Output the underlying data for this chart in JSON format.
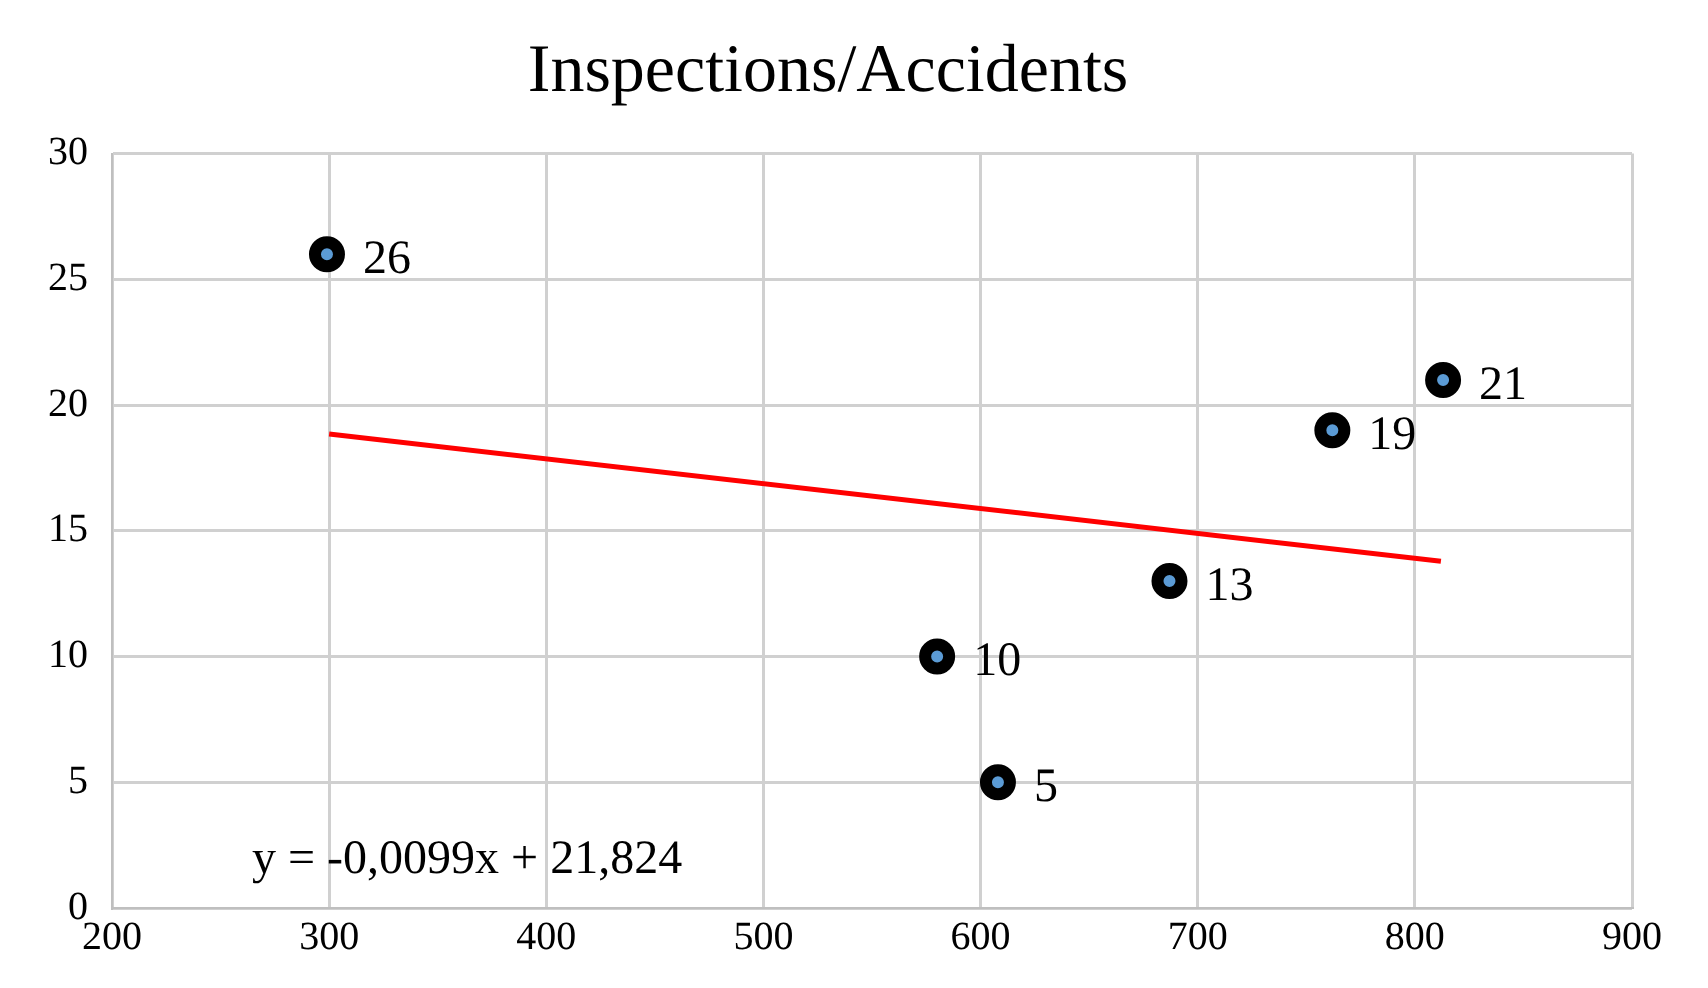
{
  "chart_data": {
    "type": "scatter",
    "title": "Inspections/Accidents",
    "xlim": [
      200,
      900
    ],
    "xticks": [
      200,
      300,
      400,
      500,
      600,
      700,
      800,
      900
    ],
    "ylim": [
      0,
      30
    ],
    "yticks": [
      0,
      5,
      10,
      15,
      20,
      25,
      30
    ],
    "grid": true,
    "legend": false,
    "annotations": [
      "y = -0,0099x + 21,824"
    ],
    "series": [
      {
        "color": "#000000",
        "marker": "circle",
        "x": [
          299,
          580,
          608,
          687,
          762,
          813
        ],
        "values": [
          26,
          10,
          5,
          13,
          19,
          21
        ],
        "value_labels": [
          "26",
          "10",
          "5",
          "13",
          "19",
          "21"
        ]
      },
      {
        "type": "line",
        "color": "#ff0000",
        "marker": "none",
        "x": [
          300,
          812
        ],
        "values": [
          18.85,
          13.79
        ]
      }
    ]
  }
}
